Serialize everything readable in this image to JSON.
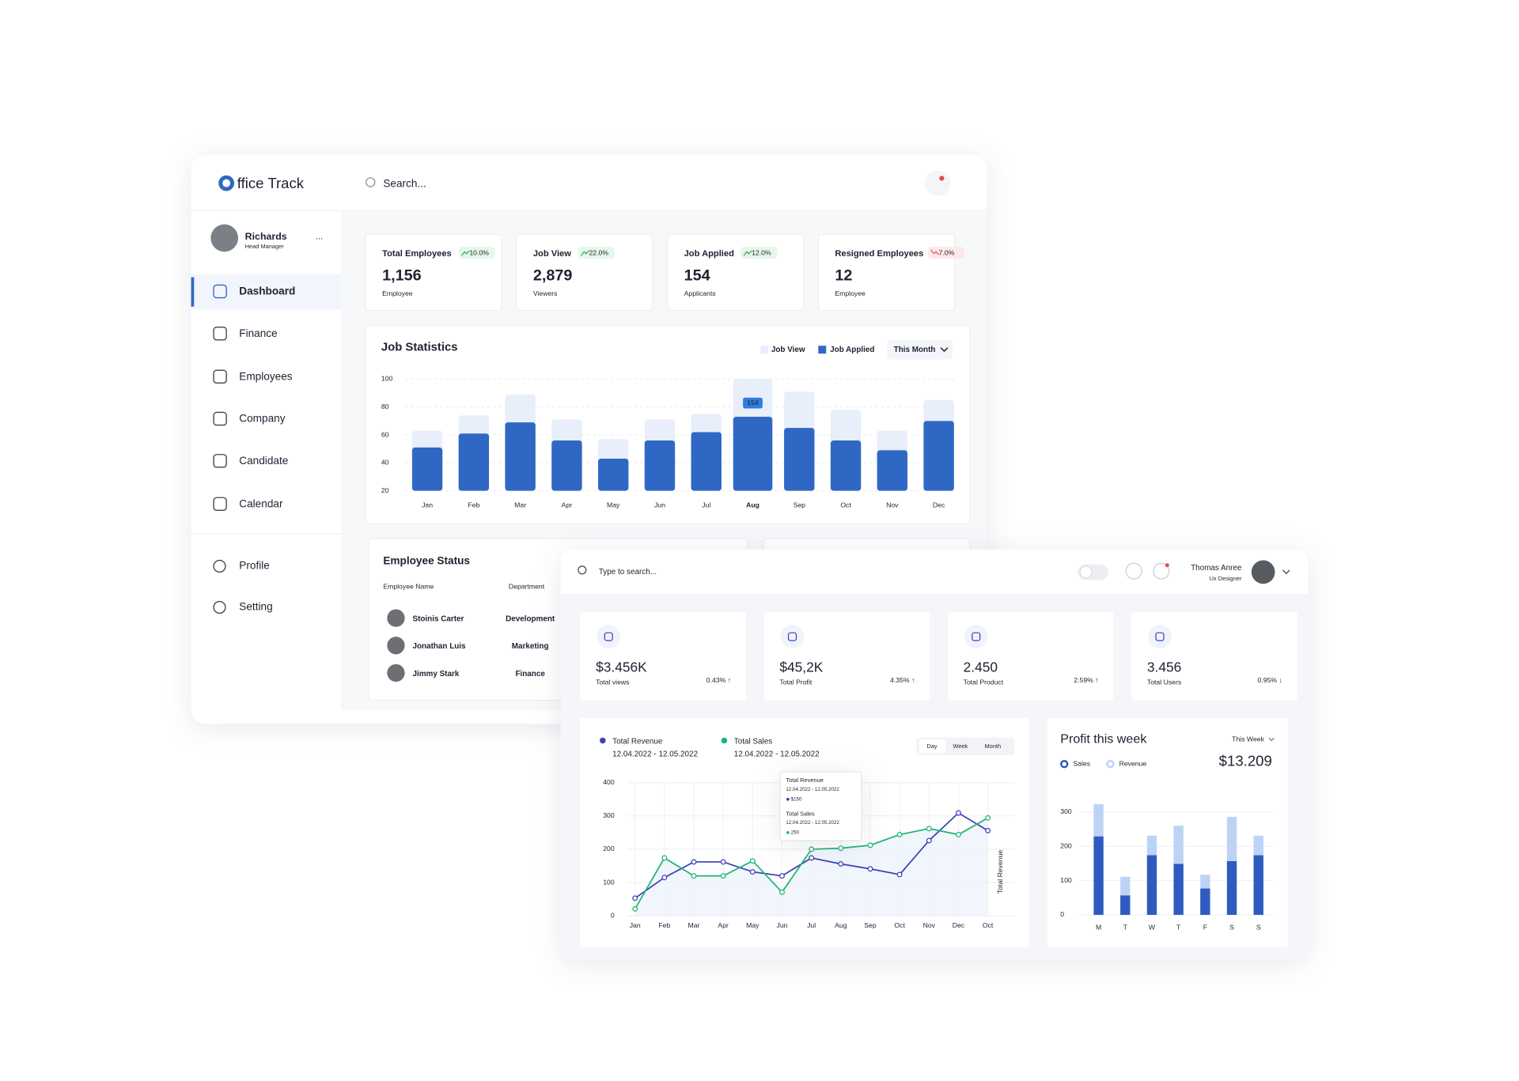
{
  "office": {
    "brand": "ffice Track",
    "search": "Search...",
    "user": {
      "name": "Richards",
      "role": "Head Manager",
      "more": "..."
    },
    "nav": [
      "Dashboard",
      "Finance",
      "Employees",
      "Company",
      "Candidate",
      "Calendar"
    ],
    "nav_bottom": [
      "Profile",
      "Setting"
    ],
    "stats": [
      {
        "title": "Total Employees",
        "change": "10.0%",
        "trend": "up",
        "value": "1,156",
        "unit": "Employee"
      },
      {
        "title": "Job View",
        "change": "22.0%",
        "trend": "up",
        "value": "2,879",
        "unit": "Viewers"
      },
      {
        "title": "Job Applied",
        "change": "12.0%",
        "trend": "up",
        "value": "154",
        "unit": "Applicants"
      },
      {
        "title": "Resigned Employees",
        "change": "7.0%",
        "trend": "down",
        "value": "12",
        "unit": "Employee"
      }
    ],
    "job_statistics": {
      "type": "bar",
      "title": "Job Statistics",
      "filter": "This Month",
      "categories": [
        "Jan",
        "Feb",
        "Mar",
        "Apr",
        "May",
        "Jun",
        "Jul",
        "Aug",
        "Sep",
        "Oct",
        "Nov",
        "Dec"
      ],
      "series": [
        {
          "name": "Job View",
          "color": "#e8eefa",
          "values": [
            63,
            74,
            89,
            71,
            57,
            71,
            75,
            100,
            91,
            78,
            63,
            85
          ]
        },
        {
          "name": "Job Applied",
          "color": "#2f68c4",
          "values": [
            51,
            61,
            69,
            56,
            43,
            56,
            62,
            73,
            65,
            56,
            49,
            70
          ]
        }
      ],
      "ylim": [
        20,
        100
      ],
      "yticks": [
        20,
        40,
        60,
        80,
        100
      ],
      "grid": true,
      "annotations": [
        {
          "x": "Aug",
          "text": "154"
        }
      ]
    },
    "employee_status": {
      "title": "Employee Status",
      "columns": [
        "Employee Name",
        "Department"
      ],
      "rows": [
        [
          "Stoinis Carter",
          "Development"
        ],
        [
          "Jonathan Luis",
          "Marketing"
        ],
        [
          "Jimmy Stark",
          "Finance"
        ]
      ]
    }
  },
  "sales": {
    "search": "Type to search...",
    "user": {
      "name": "Thomas Anree",
      "role": "Ux Designer"
    },
    "cards": [
      {
        "value": "$3.456K",
        "label": "Total views",
        "change": "0.43% ↑",
        "trend": "up"
      },
      {
        "value": "$45,2K",
        "label": "Total Profit",
        "change": "4.35% ↑",
        "trend": "up"
      },
      {
        "value": "2.450",
        "label": "Total Product",
        "change": "2.59% ↑",
        "trend": "up"
      },
      {
        "value": "3.456",
        "label": "Total Users",
        "change": "0.95% ↓",
        "trend": "down"
      }
    ],
    "revenue_chart": {
      "type": "line",
      "tabs": [
        "Day",
        "Week",
        "Month"
      ],
      "active_tab": "Day",
      "y_label": "Total Revenue",
      "categories": [
        "Jan",
        "Feb",
        "Mar",
        "Apr",
        "May",
        "Jun",
        "Jul",
        "Aug",
        "Sep",
        "Oct",
        "Nov",
        "Dec",
        "Oct"
      ],
      "series": [
        {
          "name": "Total Revenue",
          "period": "12.04.2022 - 12.05.2022",
          "color": "#3b3fb5",
          "values": [
            53,
            115,
            162,
            162,
            132,
            120,
            174,
            156,
            141,
            124,
            226,
            309,
            256
          ]
        },
        {
          "name": "Total Sales",
          "period": "12.04.2022 - 12.05.2022",
          "color": "#1fb574",
          "values": [
            21,
            174,
            120,
            120,
            165,
            71,
            200,
            203,
            212,
            244,
            262,
            244,
            294
          ]
        }
      ],
      "ylim": [
        0,
        400
      ],
      "yticks": [
        0,
        100,
        200,
        300,
        400
      ],
      "grid": true,
      "tooltip": [
        {
          "title": "Total Revenue",
          "period": "12.04.2022 - 12.05.2022",
          "value": "$150"
        },
        {
          "title": "Total Sales",
          "period": "12.04.2022 - 12.05.2022",
          "value": "250"
        }
      ]
    },
    "profit_chart": {
      "type": "bar",
      "stacked": true,
      "title": "Profit this week",
      "filter": "This Week",
      "total": "$13.209",
      "categories": [
        "M",
        "T",
        "W",
        "T",
        "F",
        "S",
        "S"
      ],
      "series": [
        {
          "name": "Sales",
          "color": "#2f5bbf",
          "values": [
            229,
            57,
            174,
            149,
            77,
            157,
            174
          ]
        },
        {
          "name": "Revenue",
          "color": "#bdd3f6",
          "values": [
            94,
            54,
            57,
            111,
            40,
            129,
            57
          ]
        }
      ],
      "ylim": [
        0,
        300
      ],
      "yticks": [
        0,
        100,
        200,
        300
      ],
      "grid": true
    }
  }
}
